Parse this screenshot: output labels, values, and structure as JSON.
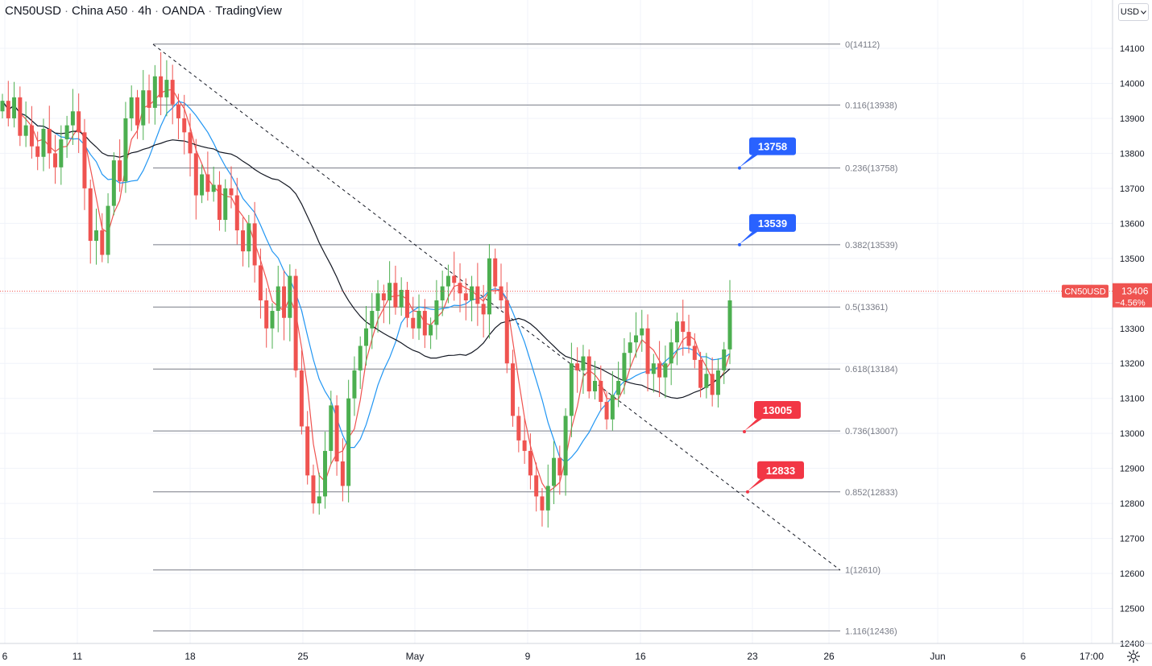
{
  "header": {
    "symbol": "CN50USD",
    "name": "China A50",
    "interval": "4h",
    "broker": "OANDA",
    "platform": "TradingView",
    "separator": "·"
  },
  "currency_button": {
    "label": "USD",
    "icon": "chevron-down-icon"
  },
  "settings_icon": "gear-icon",
  "colors": {
    "up": "#4caf50",
    "down": "#ef5350",
    "ma_fast": "#ef5350",
    "ma_mid": "#2196f3",
    "ma_slow": "#131722",
    "fib": "#787b86",
    "trend": "#131722",
    "blue_label": "#2962ff",
    "red_label": "#f23645"
  },
  "chart_data": {
    "type": "candlestick",
    "y_axis": {
      "min": 12400,
      "max": 14100,
      "ticks": [
        12400,
        12500,
        12600,
        12700,
        12800,
        12900,
        13000,
        13100,
        13200,
        13300,
        13400,
        13500,
        13600,
        13700,
        13800,
        13900,
        14000,
        14100
      ]
    },
    "x_axis": {
      "labels": [
        "6",
        "11",
        "18",
        "25",
        "May",
        "9",
        "16",
        "23",
        "26",
        "Jun",
        "6",
        "17:00"
      ]
    },
    "current_price": {
      "symbol_label": "CN50USD",
      "value": "13406",
      "change": "−4.56%",
      "level": 13406
    },
    "fib_levels": [
      {
        "label": "0(14112)",
        "value": 14112
      },
      {
        "label": "0.116(13938)",
        "value": 13938
      },
      {
        "label": "0.236(13758)",
        "value": 13758
      },
      {
        "label": "0.382(13539)",
        "value": 13539
      },
      {
        "label": "0.5(13361)",
        "value": 13361
      },
      {
        "label": "0.618(13184)",
        "value": 13184
      },
      {
        "label": "0.736(13007)",
        "value": 13007
      },
      {
        "label": "0.852(12833)",
        "value": 12833
      },
      {
        "label": "1(12610)",
        "value": 12610
      },
      {
        "label": "1.116(12436)",
        "value": 12436
      }
    ],
    "callouts": [
      {
        "text": "13758",
        "value": 13758,
        "color": "blue"
      },
      {
        "text": "13539",
        "value": 13539,
        "color": "blue"
      },
      {
        "text": "13005",
        "value": 13005,
        "color": "red"
      },
      {
        "text": "12833",
        "value": 12833,
        "color": "red"
      }
    ],
    "closes": [
      13950,
      13900,
      13960,
      13850,
      13880,
      13820,
      13790,
      13870,
      13800,
      13760,
      13840,
      13880,
      13920,
      13860,
      13700,
      13550,
      13580,
      13510,
      13650,
      13780,
      13720,
      13900,
      13960,
      13880,
      13980,
      13930,
      14020,
      13960,
      14010,
      13940,
      13900,
      13860,
      13800,
      13680,
      13740,
      13690,
      13710,
      13610,
      13700,
      13680,
      13580,
      13520,
      13600,
      13480,
      13380,
      13300,
      13350,
      13420,
      13330,
      13450,
      13180,
      13020,
      12880,
      12800,
      12820,
      12950,
      13080,
      12920,
      12850,
      13100,
      13180,
      13250,
      13300,
      13350,
      13400,
      13380,
      13430,
      13360,
      13410,
      13330,
      13300,
      13350,
      13280,
      13310,
      13380,
      13420,
      13450,
      13430,
      13400,
      13380,
      13420,
      13370,
      13340,
      13500,
      13420,
      13380,
      13200,
      13050,
      12980,
      12950,
      12880,
      12820,
      12780,
      12850,
      12930,
      12880,
      13050,
      13200,
      13180,
      13220,
      13120,
      13150,
      13090,
      13040,
      13110,
      13150,
      13230,
      13260,
      13280,
      13300,
      13170,
      13200,
      13160,
      13200,
      13260,
      13320,
      13290,
      13250,
      13210,
      13130,
      13170,
      13110,
      13180,
      13240,
      13380
    ]
  }
}
